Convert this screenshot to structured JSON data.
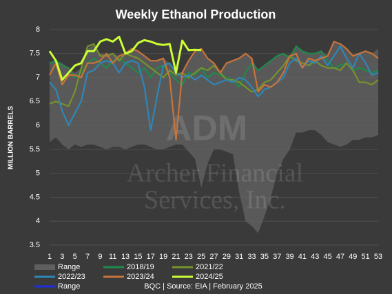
{
  "chart_data": {
    "type": "line",
    "title": "Weekly Ethanol Production",
    "y_label": "MILLION BARRELS",
    "footer": "BQC | Source: EIA | February 2025",
    "watermark": [
      "ADM",
      "Archer Financial",
      "Services, Inc."
    ],
    "x": [
      1,
      2,
      3,
      4,
      5,
      6,
      7,
      8,
      9,
      10,
      11,
      12,
      13,
      14,
      15,
      16,
      17,
      18,
      19,
      20,
      21,
      22,
      23,
      24,
      25,
      26,
      27,
      28,
      29,
      30,
      31,
      32,
      33,
      34,
      35,
      36,
      37,
      38,
      39,
      40,
      41,
      42,
      43,
      44,
      45,
      46,
      47,
      48,
      49,
      50,
      51,
      52,
      53
    ],
    "xlim": [
      1,
      53
    ],
    "xticks": [
      1,
      3,
      5,
      7,
      9,
      11,
      13,
      15,
      17,
      19,
      21,
      23,
      25,
      27,
      29,
      31,
      33,
      35,
      37,
      39,
      41,
      43,
      45,
      47,
      49,
      51,
      53
    ],
    "ylim": [
      3.5,
      8
    ],
    "yticks": [
      3.5,
      4,
      4.5,
      5,
      5.5,
      6,
      6.5,
      7,
      7.5,
      8
    ],
    "grid": true,
    "legend": "bottom",
    "range": {
      "name": "Range",
      "color": "#5f5f5f",
      "low": [
        5.65,
        5.75,
        5.6,
        5.5,
        5.6,
        5.55,
        5.6,
        5.6,
        5.55,
        5.5,
        5.55,
        5.55,
        5.5,
        5.55,
        5.6,
        5.6,
        5.55,
        5.5,
        5.5,
        5.55,
        5.6,
        5.6,
        5.45,
        5.3,
        4.7,
        5.2,
        5.5,
        5.5,
        5.45,
        5.4,
        4.6,
        4.0,
        3.9,
        3.75,
        4.1,
        4.5,
        5.0,
        5.3,
        5.5,
        5.85,
        5.85,
        5.9,
        5.9,
        5.8,
        5.65,
        5.6,
        5.55,
        5.6,
        5.7,
        5.7,
        5.75,
        5.75,
        5.8
      ],
      "high": [
        7.3,
        7.35,
        7.3,
        7.2,
        7.1,
        7.2,
        7.6,
        7.7,
        7.5,
        7.5,
        7.5,
        7.45,
        7.5,
        7.6,
        7.55,
        7.45,
        7.35,
        7.35,
        7.4,
        7.3,
        7.1,
        7.1,
        7.35,
        7.55,
        7.6,
        7.4,
        7.3,
        7.1,
        7.3,
        7.35,
        7.4,
        7.5,
        7.4,
        7.15,
        7.25,
        7.35,
        7.45,
        7.5,
        7.45,
        7.65,
        7.55,
        7.5,
        7.5,
        7.55,
        7.45,
        7.75,
        7.7,
        7.6,
        7.45,
        7.5,
        7.55,
        7.5,
        7.6
      ]
    },
    "series": [
      {
        "name": "2018/19",
        "color": "#1e8a4c",
        "values": [
          7.3,
          7.35,
          7.25,
          7.2,
          7.0,
          7.1,
          7.3,
          7.4,
          7.3,
          7.2,
          7.35,
          7.4,
          7.3,
          7.2,
          7.1,
          7.2,
          7.0,
          7.2,
          7.25,
          7.1,
          6.95,
          6.85,
          7.1,
          7.05,
          7.2,
          7.0,
          7.1,
          7.05,
          7.0,
          6.95,
          6.8,
          7.1,
          7.3,
          7.15,
          7.25,
          7.35,
          7.45,
          7.5,
          7.4,
          7.65,
          7.55,
          7.5,
          7.5,
          7.55,
          7.35,
          7.2,
          7.25,
          7.3,
          7.15,
          7.2,
          7.15,
          7.1,
          7.15
        ]
      },
      {
        "name": "2021/22",
        "color": "#76922c",
        "values": [
          6.45,
          6.5,
          6.45,
          6.4,
          6.7,
          7.2,
          7.65,
          7.7,
          7.45,
          7.45,
          7.5,
          7.35,
          7.5,
          7.45,
          7.4,
          7.3,
          7.2,
          7.1,
          7.0,
          7.15,
          7.05,
          7.1,
          7.0,
          7.1,
          7.2,
          7.15,
          7.25,
          7.1,
          6.95,
          6.95,
          6.9,
          6.8,
          6.7,
          6.75,
          6.9,
          6.95,
          7.1,
          7.25,
          7.45,
          7.35,
          7.3,
          7.25,
          7.35,
          7.25,
          7.2,
          7.2,
          7.15,
          7.3,
          7.15,
          6.9,
          6.9,
          6.85,
          6.95
        ]
      },
      {
        "name": "2022/23",
        "color": "#2f86b8",
        "values": [
          6.9,
          6.75,
          6.3,
          6.0,
          6.25,
          6.5,
          7.1,
          7.15,
          7.3,
          7.35,
          7.3,
          7.1,
          7.3,
          7.35,
          7.3,
          6.8,
          5.9,
          6.6,
          7.25,
          7.3,
          7.1,
          7.0,
          7.05,
          6.95,
          7.05,
          6.95,
          6.85,
          6.9,
          6.95,
          6.9,
          7.0,
          6.95,
          6.8,
          6.6,
          6.75,
          6.8,
          6.9,
          7.0,
          7.3,
          7.4,
          7.2,
          7.35,
          7.3,
          7.45,
          7.25,
          7.45,
          7.65,
          7.4,
          7.2,
          7.5,
          7.3,
          7.05,
          7.1
        ]
      },
      {
        "name": "2023/24",
        "color": "#c8743a",
        "values": [
          7.05,
          7.3,
          6.85,
          7.05,
          7.05,
          7.0,
          7.3,
          7.3,
          7.35,
          7.5,
          7.3,
          7.45,
          7.5,
          7.6,
          7.55,
          7.45,
          7.35,
          7.35,
          7.4,
          7.0,
          5.7,
          7.1,
          7.35,
          7.55,
          7.6,
          7.4,
          7.3,
          7.1,
          7.3,
          7.35,
          7.4,
          7.5,
          7.4,
          6.7,
          6.85,
          6.8,
          6.9,
          7.1,
          7.45,
          7.5,
          7.2,
          7.4,
          7.35,
          7.4,
          7.45,
          7.75,
          7.7,
          7.6,
          7.45,
          7.5,
          7.55,
          7.5,
          7.4
        ]
      },
      {
        "name": "2024/25",
        "color": "#ccff33",
        "width": 3,
        "values": [
          7.55,
          7.35,
          6.95,
          7.1,
          7.25,
          7.3,
          7.55,
          7.55,
          7.75,
          7.8,
          7.75,
          7.85,
          7.5,
          7.55,
          7.72,
          7.78,
          7.75,
          7.7,
          7.68,
          7.7,
          7.1,
          7.77,
          7.57,
          7.58,
          7.57,
          null,
          null,
          null,
          null,
          null,
          null,
          null,
          null,
          null,
          null,
          null,
          null,
          null,
          null,
          null,
          null,
          null,
          null,
          null,
          null,
          null,
          null,
          null,
          null,
          null,
          null,
          null,
          null
        ]
      },
      {
        "name": "Range",
        "color": "#1f2ee0",
        "values": [
          null,
          null,
          null,
          null,
          null,
          null,
          null,
          null,
          null,
          null,
          null,
          null,
          null,
          null,
          null,
          null,
          null,
          null,
          null,
          null,
          null,
          null,
          null,
          null,
          null,
          null,
          null,
          null,
          null,
          null,
          null,
          null,
          null,
          null,
          null,
          null,
          null,
          null,
          null,
          null,
          null,
          null,
          null,
          null,
          null,
          null,
          null,
          null,
          null,
          null,
          null,
          null,
          null
        ]
      }
    ]
  }
}
